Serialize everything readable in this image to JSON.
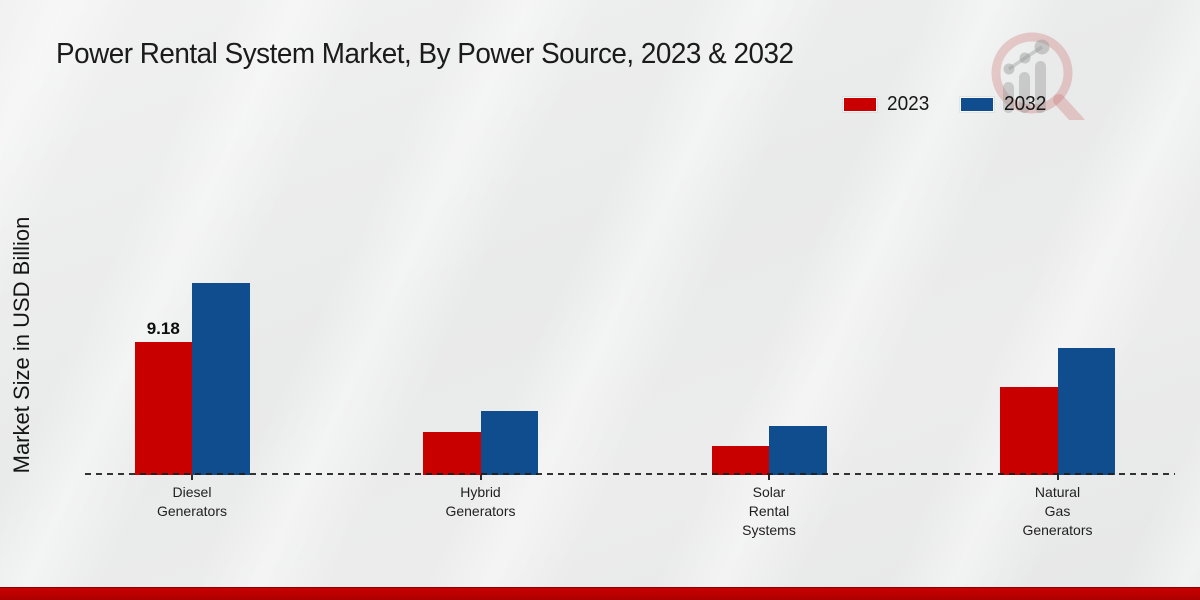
{
  "header": {
    "title": "Power Rental System Market, By Power Source, 2023 & 2032"
  },
  "legend": {
    "items": [
      {
        "label": "2023",
        "color": "#c80000"
      },
      {
        "label": "2032",
        "color": "#0f4d8f"
      }
    ]
  },
  "colors": {
    "series_2023": "#c80000",
    "series_2032": "#0f4d8f",
    "footer_strip": "#bb0000",
    "axis_line": "#1e1e1e"
  },
  "watermark": {
    "icon": "magnifier-bar-chart-logo"
  },
  "chart_data": {
    "type": "bar",
    "title": "Power Rental System Market, By Power Source, 2023 & 2032",
    "xlabel": "",
    "ylabel": "Market Size in USD Billion",
    "categories": [
      "Diesel Generators",
      "Hybrid Generators",
      "Solar Rental Systems",
      "Natural Gas Generators"
    ],
    "category_label_lines": [
      [
        "Diesel",
        "Generators"
      ],
      [
        "Hybrid",
        "Generators"
      ],
      [
        "Solar",
        "Rental",
        "Systems"
      ],
      [
        "Natural",
        "Gas",
        "Generators"
      ]
    ],
    "series": [
      {
        "name": "2023",
        "color": "#c80000",
        "values": [
          9.18,
          3.0,
          2.0,
          6.1
        ]
      },
      {
        "name": "2032",
        "color": "#0f4d8f",
        "values": [
          13.25,
          4.45,
          3.4,
          8.8
        ]
      }
    ],
    "data_labels": [
      {
        "series_index": 0,
        "category_index": 0,
        "text": "9.18"
      }
    ],
    "ylim": [
      0,
      14.5
    ],
    "grid": false,
    "axis_style": "dashed-baseline-only",
    "legend_position": "top-right"
  }
}
